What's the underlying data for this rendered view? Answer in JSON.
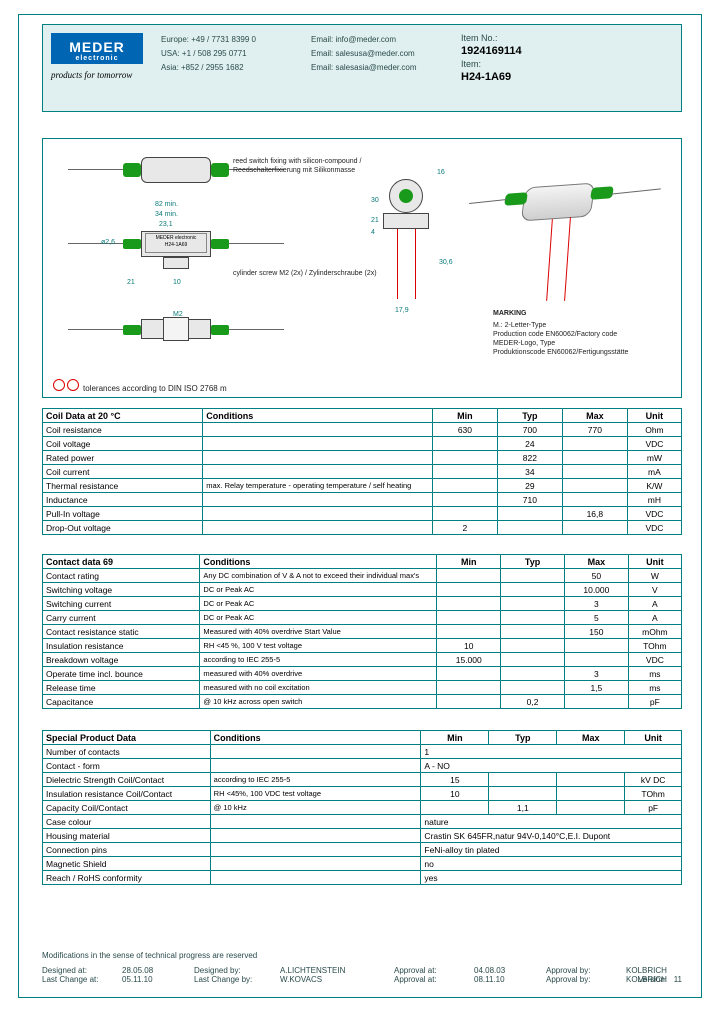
{
  "colors": {
    "frame": "#008080",
    "header_bg": "#e0f0f0",
    "logo_bg": "#0066b3",
    "logo_fg": "#ffffff",
    "red": "#d00000",
    "green": "#1a9a1a",
    "text_muted": "#2a4a4a"
  },
  "header": {
    "logo_main": "MEDER",
    "logo_sub": "electronic",
    "logo_slogan": "products for tomorrow",
    "contacts": {
      "europe": "Europe: +49 / 7731 8399 0",
      "usa": "USA:    +1 / 508 295 0771",
      "asia": "Asia:   +852 / 2955 1682"
    },
    "emails": {
      "europe": "Email: info@meder.com",
      "usa": "Email: salesusa@meder.com",
      "asia": "Email: salesasia@meder.com"
    },
    "item_no_label": "Item No.:",
    "item_no": "1924169114",
    "item_label": "Item:",
    "item": "H24-1A69"
  },
  "drawing": {
    "notes": {
      "top": "reed switch fixing with silicon-compound / Reedschalterfixierung mit Silikonmasse",
      "mid": "cylinder screw M2 (2x) / Zylinderschraube (2x)",
      "marking": "MARKING",
      "marking_sub": "M.: 2-Letter-Type\nProduction code EN60062/Factory code\nMEDER-Logo, Type\nProduktionscode EN60062/Fertigungsstätte"
    },
    "dims": {
      "len_overall": "82 min.",
      "len_total": "34 min.",
      "len_body": "23,1",
      "h_body": "21",
      "w_tab": "10",
      "end_h": "21",
      "dia": "ø2,6",
      "nut": "M2",
      "side_h": "30",
      "side_t": "21",
      "side_m": "4",
      "side_w": "16",
      "base_w": "17,9",
      "lead": "30,6"
    },
    "tolerance": "tolerances according to DIN ISO 2768 m",
    "label": "MEDER electronic\nH24-1A69"
  },
  "tables": {
    "coil": {
      "title": "Coil Data at 20 °C",
      "cols": [
        "Conditions",
        "Min",
        "Typ",
        "Max",
        "Unit"
      ],
      "rows": [
        {
          "p": "Coil resistance",
          "c": "",
          "min": "630",
          "typ": "700",
          "max": "770",
          "u": "Ohm"
        },
        {
          "p": "Coil voltage",
          "c": "",
          "min": "",
          "typ": "24",
          "max": "",
          "u": "VDC"
        },
        {
          "p": "Rated power",
          "c": "",
          "min": "",
          "typ": "822",
          "max": "",
          "u": "mW"
        },
        {
          "p": "Coil current",
          "c": "",
          "min": "",
          "typ": "34",
          "max": "",
          "u": "mA"
        },
        {
          "p": "Thermal resistance",
          "c": "max. Relay temperature - operating temperature / self heating",
          "min": "",
          "typ": "29",
          "max": "",
          "u": "K/W"
        },
        {
          "p": "Inductance",
          "c": "",
          "min": "",
          "typ": "710",
          "max": "",
          "u": "mH"
        },
        {
          "p": "Pull-In voltage",
          "c": "",
          "min": "",
          "typ": "",
          "max": "16,8",
          "u": "VDC"
        },
        {
          "p": "Drop-Out voltage",
          "c": "",
          "min": "2",
          "typ": "",
          "max": "",
          "u": "VDC"
        }
      ]
    },
    "contact": {
      "title": "Contact data  69",
      "cols": [
        "Conditions",
        "Min",
        "Typ",
        "Max",
        "Unit"
      ],
      "rows": [
        {
          "p": "Contact rating",
          "c": "Any DC combination of V & A not to exceed their individual max's",
          "min": "",
          "typ": "",
          "max": "50",
          "u": "W"
        },
        {
          "p": "Switching voltage",
          "c": "DC or Peak AC",
          "min": "",
          "typ": "",
          "max": "10.000",
          "u": "V"
        },
        {
          "p": "Switching current",
          "c": "DC or Peak AC",
          "min": "",
          "typ": "",
          "max": "3",
          "u": "A"
        },
        {
          "p": "Carry current",
          "c": "DC or Peak AC",
          "min": "",
          "typ": "",
          "max": "5",
          "u": "A"
        },
        {
          "p": "Contact resistance static",
          "c": "Measured with 40% overdrive Start Value",
          "min": "",
          "typ": "",
          "max": "150",
          "u": "mOhm"
        },
        {
          "p": "Insulation resistance",
          "c": "RH <45 %, 100 V test voltage",
          "min": "10",
          "typ": "",
          "max": "",
          "u": "TOhm"
        },
        {
          "p": "Breakdown voltage",
          "c": "according to IEC 255-5",
          "min": "15.000",
          "typ": "",
          "max": "",
          "u": "VDC"
        },
        {
          "p": "Operate time incl. bounce",
          "c": "measured with 40% overdrive",
          "min": "",
          "typ": "",
          "max": "3",
          "u": "ms"
        },
        {
          "p": "Release time",
          "c": "measured with no coil excitation",
          "min": "",
          "typ": "",
          "max": "1,5",
          "u": "ms"
        },
        {
          "p": "Capacitance",
          "c": "@ 10 kHz across open switch",
          "min": "",
          "typ": "0,2",
          "max": "",
          "u": "pF"
        }
      ]
    },
    "special": {
      "title": "Special Product Data",
      "cols": [
        "Conditions",
        "Min",
        "Typ",
        "Max",
        "Unit"
      ],
      "rows": [
        {
          "p": "Number of contacts",
          "c": "",
          "span": "1"
        },
        {
          "p": "Contact - form",
          "c": "",
          "span": "A - NO"
        },
        {
          "p": "Dielectric Strength Coil/Contact",
          "c": "according to IEC 255-5",
          "min": "15",
          "typ": "",
          "max": "",
          "u": "kV DC"
        },
        {
          "p": "Insulation resistance Coil/Contact",
          "c": "RH <45%, 100 VDC test voltage",
          "min": "10",
          "typ": "",
          "max": "",
          "u": "TOhm"
        },
        {
          "p": "Capacity Coil/Contact",
          "c": "@ 10 kHz",
          "min": "",
          "typ": "1,1",
          "max": "",
          "u": "pF"
        },
        {
          "p": "Case colour",
          "c": "",
          "span": "nature"
        },
        {
          "p": "Housing material",
          "c": "",
          "span": "Crastin SK 645FR,natur 94V-0,140°C,E.I. Dupont"
        },
        {
          "p": "Connection pins",
          "c": "",
          "span": "FeNi-alloy tin plated"
        },
        {
          "p": "Magnetic Shield",
          "c": "",
          "span": "no"
        },
        {
          "p": "Reach / RoHS conformity",
          "c": "",
          "span": "yes"
        }
      ]
    }
  },
  "footer": {
    "mod": "Modifications in the sense of technical progress are reserved",
    "row1": {
      "l1": "Designed at:",
      "v1": "28.05.08",
      "l2": "Designed by:",
      "v2": "A.LICHTENSTEIN",
      "l3": "Approval at:",
      "v3": "04.08.03",
      "l4": "Approval by:",
      "v4": "KOLBRICH"
    },
    "row2": {
      "l1": "Last Change at:",
      "v1": "05.11.10",
      "l2": "Last Change by:",
      "v2": "W.KOVACS",
      "l3": "Approval at:",
      "v3": "08.11.10",
      "l4": "Approval by:",
      "v4": "KOLBRICH"
    },
    "version_label": "Version:",
    "version": "11"
  }
}
